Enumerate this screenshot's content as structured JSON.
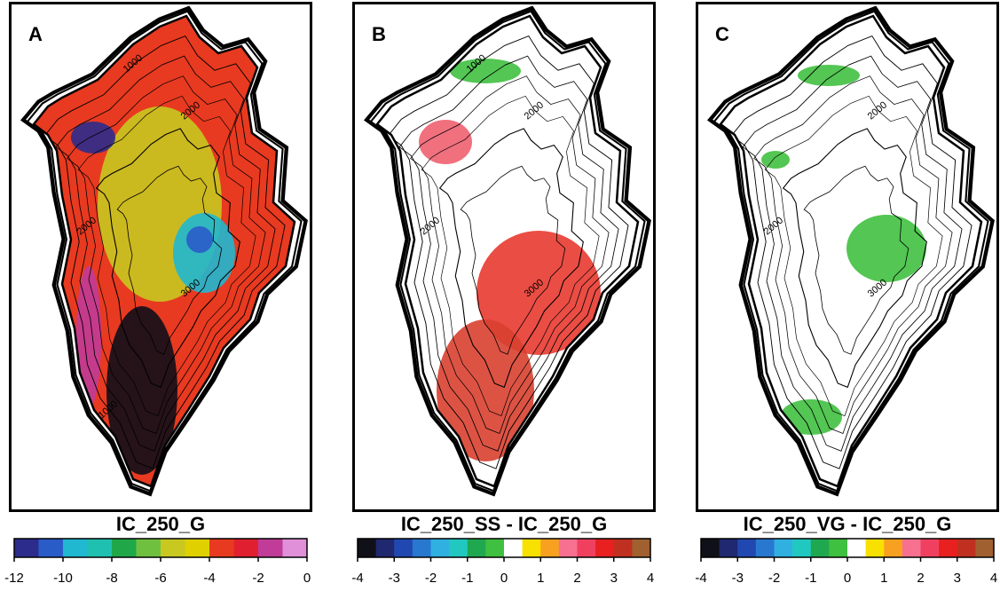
{
  "panels": [
    {
      "label": "A",
      "title": "IC_250_G",
      "contour_labels": [
        "1000",
        "2000",
        "2000",
        "3000",
        "1000"
      ],
      "colorbar": {
        "lim": [
          -12,
          0
        ],
        "ticks": [
          -12,
          -10,
          -8,
          -6,
          -4,
          -2,
          0
        ],
        "colors": [
          "#2c2c8c",
          "#2a5cc8",
          "#20b8d0",
          "#20c0b0",
          "#20a848",
          "#70c040",
          "#c8c820",
          "#e0d000",
          "#e83a20",
          "#e02030",
          "#c03c98",
          "#e090d8"
        ]
      }
    },
    {
      "label": "B",
      "title": "IC_250_SS - IC_250_G",
      "contour_labels": [
        "1000",
        "2000",
        "2000",
        "3000"
      ],
      "colorbar": {
        "lim": [
          -4,
          4
        ],
        "ticks": [
          -4,
          -3,
          -2,
          -1,
          0,
          1,
          2,
          3,
          4
        ],
        "colors": [
          "#101018",
          "#202870",
          "#2048b0",
          "#2878d0",
          "#30b0e0",
          "#20c8c0",
          "#20a850",
          "#40c040",
          "#ffffff",
          "#f8e000",
          "#f8a020",
          "#f87090",
          "#f04060",
          "#e82020",
          "#c03020",
          "#a06030"
        ]
      }
    },
    {
      "label": "C",
      "title": "IC_250_VG - IC_250_G",
      "contour_labels": [
        "2000",
        "2000",
        "3000"
      ],
      "colorbar": {
        "lim": [
          -4,
          4
        ],
        "ticks": [
          -4,
          -3,
          -2,
          -1,
          0,
          1,
          2,
          3,
          4
        ],
        "colors": [
          "#101018",
          "#202870",
          "#2048b0",
          "#2878d0",
          "#30b0e0",
          "#20c8c0",
          "#20a850",
          "#40c040",
          "#ffffff",
          "#f8e000",
          "#f8a020",
          "#f87090",
          "#f04060",
          "#e82020",
          "#c03020",
          "#a06030"
        ]
      }
    }
  ]
}
